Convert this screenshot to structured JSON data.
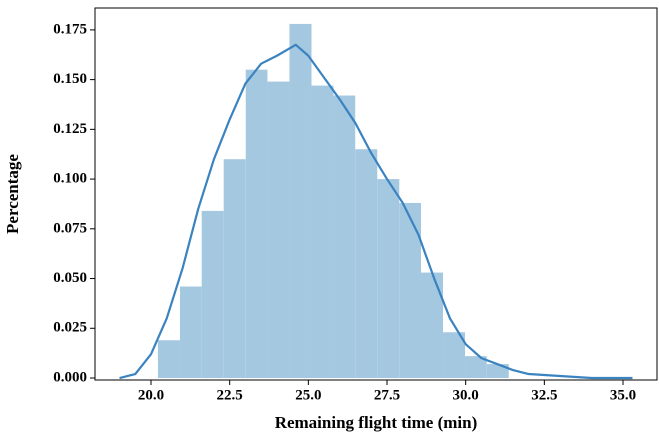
{
  "chart_data": {
    "type": "histogram",
    "xlabel": "Remaining flight time (min)",
    "ylabel": "Percentage",
    "bins": [
      20.22,
      20.92,
      21.61,
      22.31,
      23.01,
      23.7,
      24.4,
      25.1,
      25.8,
      26.49,
      27.19,
      27.89,
      28.58,
      29.28,
      29.98,
      30.67,
      31.37
    ],
    "values": [
      0.019,
      0.046,
      0.084,
      0.11,
      0.155,
      0.149,
      0.178,
      0.147,
      0.142,
      0.115,
      0.1,
      0.088,
      0.053,
      0.023,
      0.011,
      0.007
    ],
    "color": "#a5c8e1",
    "kde": {
      "color": "#3a83c0",
      "x": [
        19.0,
        19.5,
        20.0,
        20.5,
        21.0,
        21.5,
        22.0,
        22.5,
        23.0,
        23.5,
        24.0,
        24.6,
        25.0,
        25.5,
        26.0,
        26.5,
        27.0,
        27.5,
        28.0,
        28.5,
        29.0,
        29.5,
        30.0,
        30.5,
        31.0,
        31.5,
        32.0,
        33.0,
        34.0,
        35.3
      ],
      "values": [
        0.0,
        0.002,
        0.012,
        0.03,
        0.055,
        0.085,
        0.11,
        0.13,
        0.148,
        0.158,
        0.162,
        0.1675,
        0.162,
        0.151,
        0.14,
        0.128,
        0.113,
        0.1,
        0.088,
        0.072,
        0.05,
        0.03,
        0.017,
        0.01,
        0.007,
        0.004,
        0.002,
        0.001,
        0.0,
        0.0
      ]
    },
    "xlim": [
      18.22,
      36.08
    ],
    "ylim": [
      -0.001,
      0.186
    ],
    "xticks": [
      {
        "value": 20,
        "label": "20.0"
      },
      {
        "value": 22.5,
        "label": "22.5"
      },
      {
        "value": 25,
        "label": "25.0"
      },
      {
        "value": 27.5,
        "label": "27.5"
      },
      {
        "value": 30,
        "label": "30.0"
      },
      {
        "value": 32.5,
        "label": "32.5"
      },
      {
        "value": 35,
        "label": "35.0"
      }
    ],
    "yticks": [
      {
        "value": 0,
        "label": "0.000"
      },
      {
        "value": 0.025,
        "label": "0.025"
      },
      {
        "value": 0.05,
        "label": "0.050"
      },
      {
        "value": 0.075,
        "label": "0.075"
      },
      {
        "value": 0.1,
        "label": "0.100"
      },
      {
        "value": 0.125,
        "label": "0.125"
      },
      {
        "value": 0.15,
        "label": "0.150"
      },
      {
        "value": 0.175,
        "label": "0.175"
      }
    ]
  }
}
